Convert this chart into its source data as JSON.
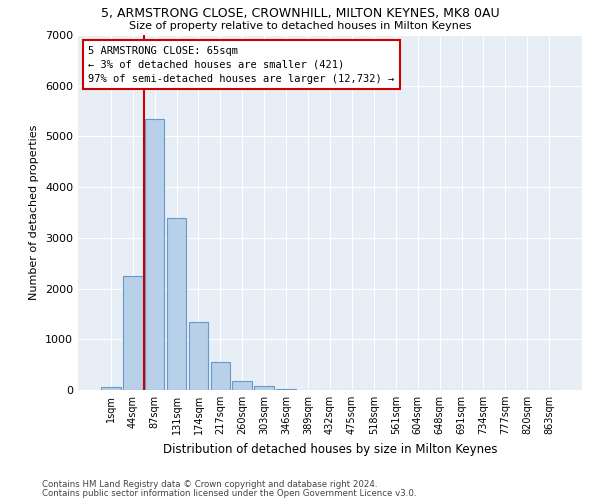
{
  "title_line1": "5, ARMSTRONG CLOSE, CROWNHILL, MILTON KEYNES, MK8 0AU",
  "title_line2": "Size of property relative to detached houses in Milton Keynes",
  "xlabel": "Distribution of detached houses by size in Milton Keynes",
  "ylabel": "Number of detached properties",
  "footer_line1": "Contains HM Land Registry data © Crown copyright and database right 2024.",
  "footer_line2": "Contains public sector information licensed under the Open Government Licence v3.0.",
  "categories": [
    "1sqm",
    "44sqm",
    "87sqm",
    "131sqm",
    "174sqm",
    "217sqm",
    "260sqm",
    "303sqm",
    "346sqm",
    "389sqm",
    "432sqm",
    "475sqm",
    "518sqm",
    "561sqm",
    "604sqm",
    "648sqm",
    "691sqm",
    "734sqm",
    "777sqm",
    "820sqm",
    "863sqm"
  ],
  "values": [
    50,
    2250,
    5350,
    3400,
    1350,
    550,
    180,
    80,
    20,
    5,
    2,
    1,
    0,
    0,
    0,
    0,
    0,
    0,
    0,
    0,
    0
  ],
  "bar_color": "#b8d0e8",
  "bar_edge_color": "#6699cc",
  "background_color": "#e8eef6",
  "vline_color": "#cc0000",
  "vline_pos": 1.5,
  "annotation_text": "5 ARMSTRONG CLOSE: 65sqm\n← 3% of detached houses are smaller (421)\n97% of semi-detached houses are larger (12,732) →",
  "annotation_edge_color": "#cc0000",
  "ylim": [
    0,
    7000
  ],
  "yticks": [
    0,
    1000,
    2000,
    3000,
    4000,
    5000,
    6000,
    7000
  ]
}
